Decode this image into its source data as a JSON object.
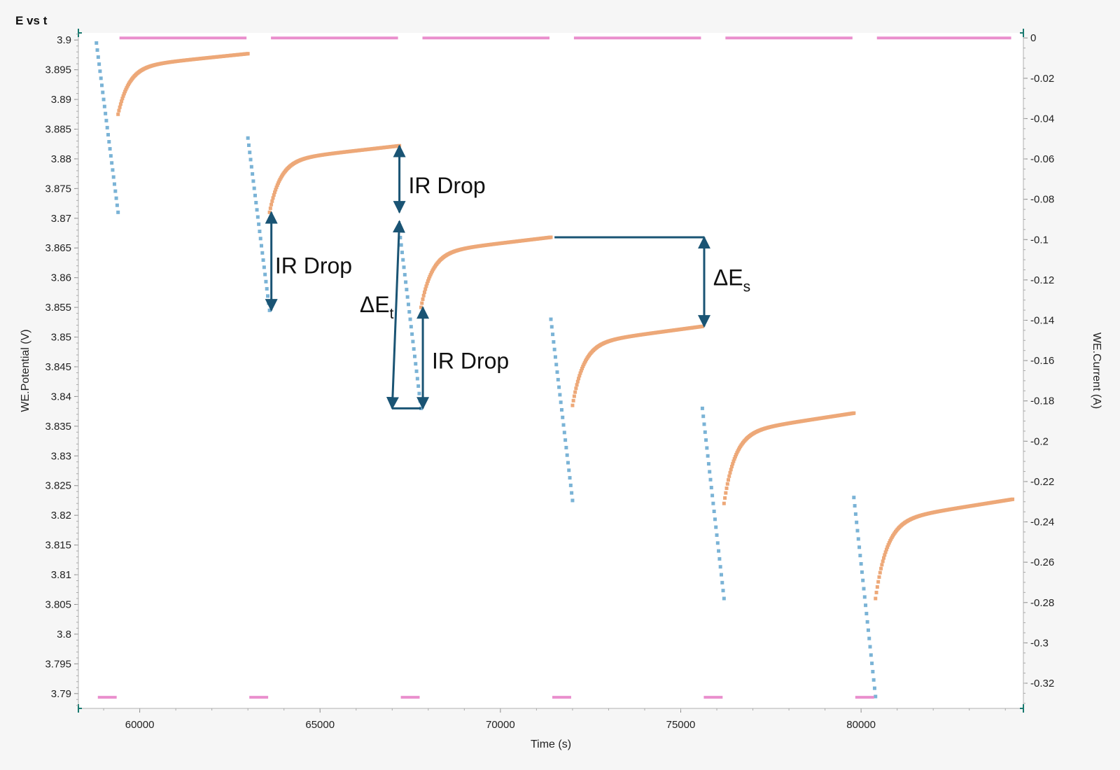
{
  "chart_data": {
    "type": "scatter",
    "title": "E vs t",
    "xlabel": "Time (s)",
    "ylabel": "WE.Potential (V)",
    "y2label": "WE.Current (A)",
    "xlim": [
      58300,
      84500
    ],
    "ylim": [
      3.7875,
      3.9012
    ],
    "y2lim": [
      -0.3325,
      0.0025
    ],
    "x_ticks": [
      60000,
      65000,
      70000,
      75000,
      80000
    ],
    "y_ticks": [
      3.9,
      3.895,
      3.89,
      3.885,
      3.88,
      3.875,
      3.87,
      3.865,
      3.86,
      3.855,
      3.85,
      3.845,
      3.84,
      3.835,
      3.83,
      3.825,
      3.82,
      3.815,
      3.81,
      3.805,
      3.8,
      3.795,
      3.79
    ],
    "y2_ticks": [
      0,
      -0.02,
      -0.04,
      -0.06,
      -0.08,
      -0.1,
      -0.12,
      -0.14,
      -0.16,
      -0.18,
      -0.2,
      -0.22,
      -0.24,
      -0.26,
      -0.28,
      -0.3,
      -0.32
    ],
    "grid": false,
    "colors": {
      "pulse": "#7ab3d6",
      "relax": "#eda878",
      "current": "#ea8fcd",
      "annotation": "#1a5474"
    },
    "series": [
      {
        "axis": "left",
        "segments": [
          {
            "x0": 58800,
            "x1": 59400,
            "y0": 3.8995,
            "y1": 3.871
          },
          {
            "x0": 63000,
            "x1": 63600,
            "y0": 3.8835,
            "y1": 3.8545
          },
          {
            "x0": 67200,
            "x1": 67800,
            "y0": 3.868,
            "y1": 3.838
          },
          {
            "x0": 71400,
            "x1": 72000,
            "y0": 3.853,
            "y1": 3.8225
          },
          {
            "x0": 75600,
            "x1": 76200,
            "y0": 3.838,
            "y1": 3.806
          },
          {
            "x0": 79800,
            "x1": 80400,
            "y0": 3.823,
            "y1": 3.7895
          }
        ]
      },
      {
        "axis": "left",
        "segments": [
          {
            "x0": 59400,
            "x1": 63000,
            "y0": 3.8875,
            "yend": 3.8977
          },
          {
            "x0": 63600,
            "x1": 67200,
            "y0": 3.871,
            "yend": 3.8822
          },
          {
            "x0": 67800,
            "x1": 71400,
            "y0": 3.855,
            "yend": 3.8668
          },
          {
            "x0": 72000,
            "x1": 75600,
            "y0": 3.8385,
            "yend": 3.8518
          },
          {
            "x0": 76200,
            "x1": 79800,
            "y0": 3.822,
            "yend": 3.8372
          },
          {
            "x0": 80400,
            "x1": 84200,
            "y0": 3.806,
            "yend": 3.8227
          }
        ]
      },
      {
        "axis": "right",
        "segments": [
          {
            "x0": 58800,
            "x1": 59400,
            "y": -0.327
          },
          {
            "x0": 59400,
            "x1": 63000,
            "y": 0
          },
          {
            "x0": 63000,
            "x1": 63600,
            "y": -0.327
          },
          {
            "x0": 63600,
            "x1": 67200,
            "y": 0
          },
          {
            "x0": 67200,
            "x1": 67800,
            "y": -0.327
          },
          {
            "x0": 67800,
            "x1": 71400,
            "y": 0
          },
          {
            "x0": 71400,
            "x1": 72000,
            "y": -0.327
          },
          {
            "x0": 72000,
            "x1": 75600,
            "y": 0
          },
          {
            "x0": 75600,
            "x1": 76200,
            "y": -0.327
          },
          {
            "x0": 76200,
            "x1": 79800,
            "y": 0
          },
          {
            "x0": 79800,
            "x1": 80400,
            "y": -0.327
          },
          {
            "x0": 80400,
            "x1": 84200,
            "y": 0
          }
        ]
      }
    ],
    "annotations": [
      {
        "label": "IR Drop",
        "sub": "",
        "type": "vertical",
        "x": 67200,
        "y_top": 3.8822,
        "y_bottom": 3.871,
        "text_x": 67450,
        "text_y": 3.8755
      },
      {
        "label": "IR Drop",
        "sub": "",
        "type": "vertical",
        "x": 63650,
        "y_top": 3.871,
        "y_bottom": 3.8545,
        "text_x": 63750,
        "text_y": 3.862
      },
      {
        "label": "ΔE",
        "sub": "t",
        "type": "slanted",
        "x_top": 67200,
        "y_top": 3.8695,
        "x_bottom": 67000,
        "y_bottom": 3.838,
        "bracket_x_end": 67800,
        "text_x": 66100,
        "text_y": 3.8555
      },
      {
        "label": "IR Drop",
        "sub": "",
        "type": "vertical",
        "x": 67850,
        "y_top": 3.855,
        "y_bottom": 3.838,
        "text_x": 68100,
        "text_y": 3.846
      },
      {
        "label": "ΔE",
        "sub": "s",
        "type": "vertical",
        "x": 75650,
        "y_top": 3.8668,
        "y_bottom": 3.8518,
        "bracket_x_start": 71500,
        "text_x": 75900,
        "text_y": 3.86
      }
    ]
  }
}
